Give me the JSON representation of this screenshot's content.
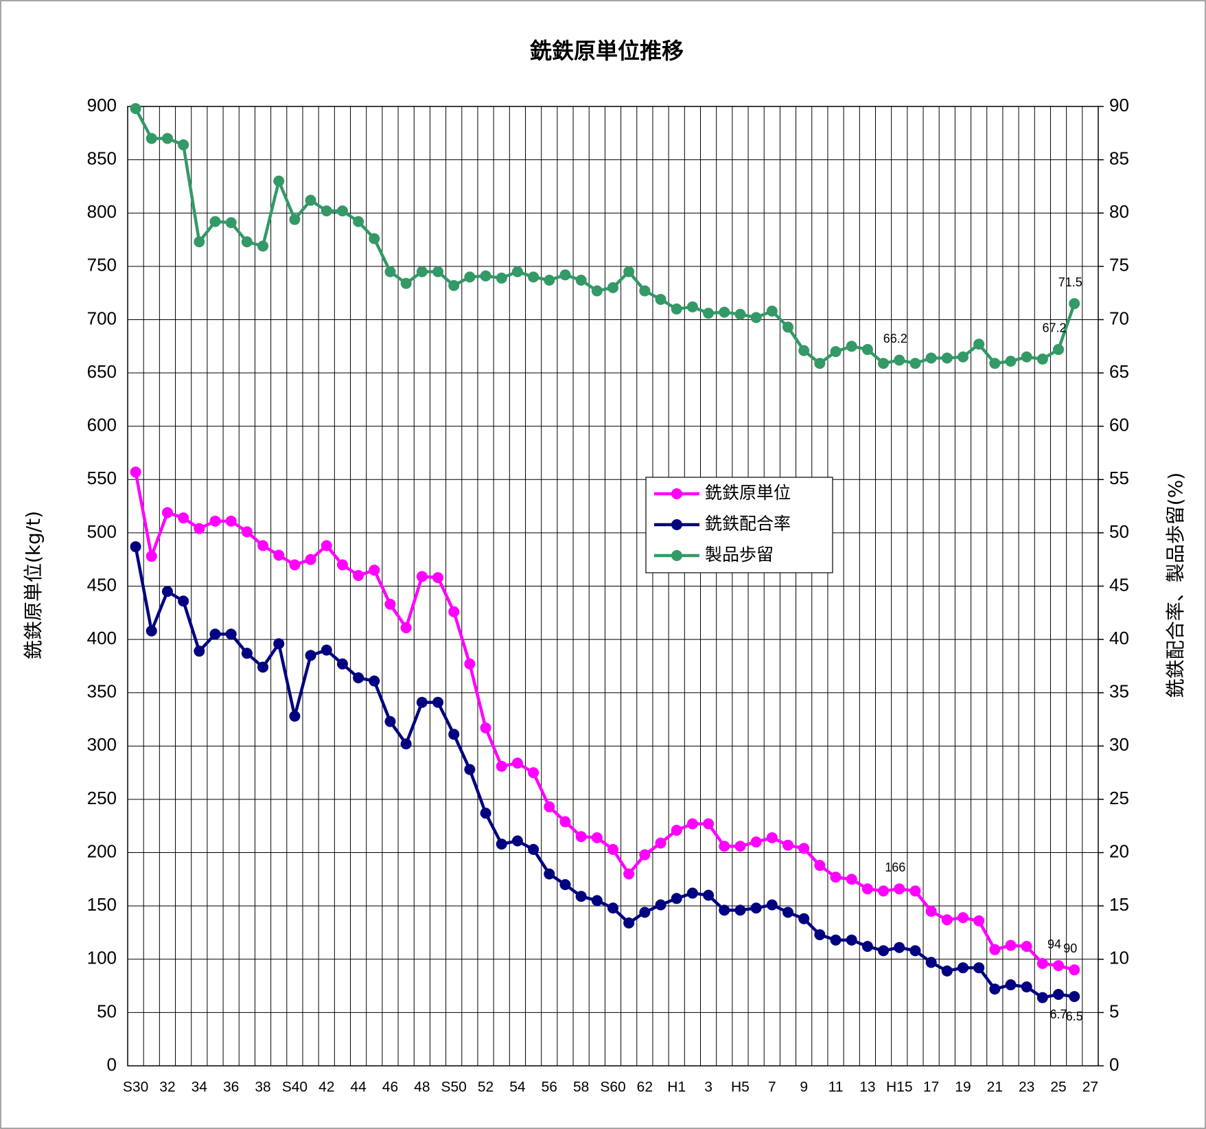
{
  "chart_data": {
    "type": "line",
    "title": "銑鉄原単位推移",
    "y_label": "銑鉄原単位(kg/t)",
    "y2_label": "銑鉄配合率、製品歩留(%)",
    "categories": [
      "S30",
      null,
      "32",
      null,
      "34",
      null,
      "36",
      null,
      "38",
      null,
      "S40",
      null,
      "42",
      null,
      "44",
      null,
      "46",
      null,
      "48",
      null,
      "S50",
      null,
      "52",
      null,
      "54",
      null,
      "56",
      null,
      "58",
      null,
      "S60",
      null,
      "62",
      null,
      "H1",
      null,
      "3",
      null,
      "H5",
      null,
      "7",
      null,
      "9",
      null,
      "11",
      null,
      "13",
      null,
      "H15",
      null,
      "17",
      null,
      "19",
      null,
      "21",
      null,
      "23",
      null,
      "25",
      null,
      "27"
    ],
    "ylim": [
      0,
      900
    ],
    "yticks": [
      0,
      50,
      100,
      150,
      200,
      250,
      300,
      350,
      400,
      450,
      500,
      550,
      600,
      650,
      700,
      750,
      800,
      850,
      900
    ],
    "y2lim": [
      0,
      90
    ],
    "y2ticks": [
      0,
      5,
      10,
      15,
      20,
      25,
      30,
      35,
      40,
      45,
      50,
      55,
      60,
      65,
      70,
      75,
      80,
      85,
      90
    ],
    "grid": true,
    "legend": "center-right",
    "series": [
      {
        "name": "銑鉄原単位",
        "color": "#ff00ff",
        "axis": "y",
        "values": [
          557,
          478,
          519,
          514,
          504,
          511,
          511,
          501,
          488,
          479,
          470,
          475,
          488,
          470,
          460,
          465,
          433,
          411,
          459,
          458,
          426,
          377,
          317,
          281,
          284,
          275,
          243,
          229,
          215,
          214,
          203,
          180,
          198,
          209,
          221,
          227,
          227,
          206,
          206,
          210,
          214,
          207,
          204,
          188,
          177,
          175,
          166,
          164,
          166,
          164,
          145,
          137,
          139,
          136,
          109,
          113,
          112,
          96,
          94,
          90,
          null
        ],
        "value_labels": [
          null,
          null,
          null,
          null,
          null,
          null,
          null,
          null,
          null,
          null,
          null,
          null,
          null,
          null,
          null,
          null,
          null,
          null,
          null,
          null,
          null,
          null,
          null,
          null,
          null,
          null,
          null,
          null,
          null,
          null,
          null,
          null,
          null,
          null,
          null,
          null,
          null,
          null,
          null,
          null,
          null,
          null,
          null,
          null,
          null,
          null,
          null,
          null,
          "166",
          null,
          null,
          null,
          null,
          null,
          null,
          null,
          null,
          null,
          "94",
          "90",
          null
        ]
      },
      {
        "name": "銑鉄配合率",
        "color": "#000080",
        "axis": "y2",
        "values": [
          48.7,
          40.8,
          44.5,
          43.6,
          38.9,
          40.5,
          40.5,
          38.7,
          37.4,
          39.6,
          32.8,
          38.5,
          39.0,
          37.7,
          36.4,
          36.1,
          32.3,
          30.2,
          34.1,
          34.1,
          31.1,
          27.8,
          23.7,
          20.8,
          21.1,
          20.3,
          18.0,
          17.0,
          15.9,
          15.5,
          14.8,
          13.4,
          14.4,
          15.1,
          15.7,
          16.2,
          16.0,
          14.6,
          14.6,
          14.8,
          15.1,
          14.4,
          13.8,
          12.3,
          11.8,
          11.8,
          11.2,
          10.8,
          11.1,
          10.8,
          9.7,
          8.9,
          9.2,
          9.2,
          7.2,
          7.6,
          7.4,
          6.4,
          6.7,
          6.5,
          null
        ],
        "value_labels": [
          null,
          null,
          null,
          null,
          null,
          null,
          null,
          null,
          null,
          null,
          null,
          null,
          null,
          null,
          null,
          null,
          null,
          null,
          null,
          null,
          null,
          null,
          null,
          null,
          null,
          null,
          null,
          null,
          null,
          null,
          null,
          null,
          null,
          null,
          null,
          null,
          null,
          null,
          null,
          null,
          null,
          null,
          null,
          null,
          null,
          null,
          null,
          null,
          null,
          null,
          null,
          null,
          null,
          null,
          null,
          null,
          null,
          null,
          "6.7",
          "6.5",
          null
        ]
      },
      {
        "name": "製品歩留",
        "color": "#339966",
        "axis": "y2",
        "values": [
          89.8,
          87.0,
          87.0,
          86.4,
          77.3,
          79.2,
          79.1,
          77.3,
          76.9,
          83.0,
          79.4,
          81.2,
          80.2,
          80.2,
          79.2,
          77.6,
          74.5,
          73.4,
          74.5,
          74.5,
          73.2,
          74.0,
          74.1,
          73.9,
          74.5,
          74.0,
          73.7,
          74.2,
          73.7,
          72.7,
          73.0,
          74.5,
          72.7,
          71.9,
          71.0,
          71.2,
          70.6,
          70.7,
          70.5,
          70.2,
          70.8,
          69.3,
          67.1,
          65.9,
          67.0,
          67.5,
          67.2,
          65.9,
          66.2,
          65.9,
          66.4,
          66.4,
          66.5,
          67.7,
          65.9,
          66.1,
          66.5,
          66.3,
          67.2,
          71.5,
          null
        ],
        "value_labels": [
          null,
          null,
          null,
          null,
          null,
          null,
          null,
          null,
          null,
          null,
          null,
          null,
          null,
          null,
          null,
          null,
          null,
          null,
          null,
          null,
          null,
          null,
          null,
          null,
          null,
          null,
          null,
          null,
          null,
          null,
          null,
          null,
          null,
          null,
          null,
          null,
          null,
          null,
          null,
          null,
          null,
          null,
          null,
          null,
          null,
          null,
          null,
          null,
          "66.2",
          null,
          null,
          null,
          null,
          null,
          null,
          null,
          null,
          null,
          "67.2",
          "71.5",
          null
        ]
      }
    ]
  }
}
